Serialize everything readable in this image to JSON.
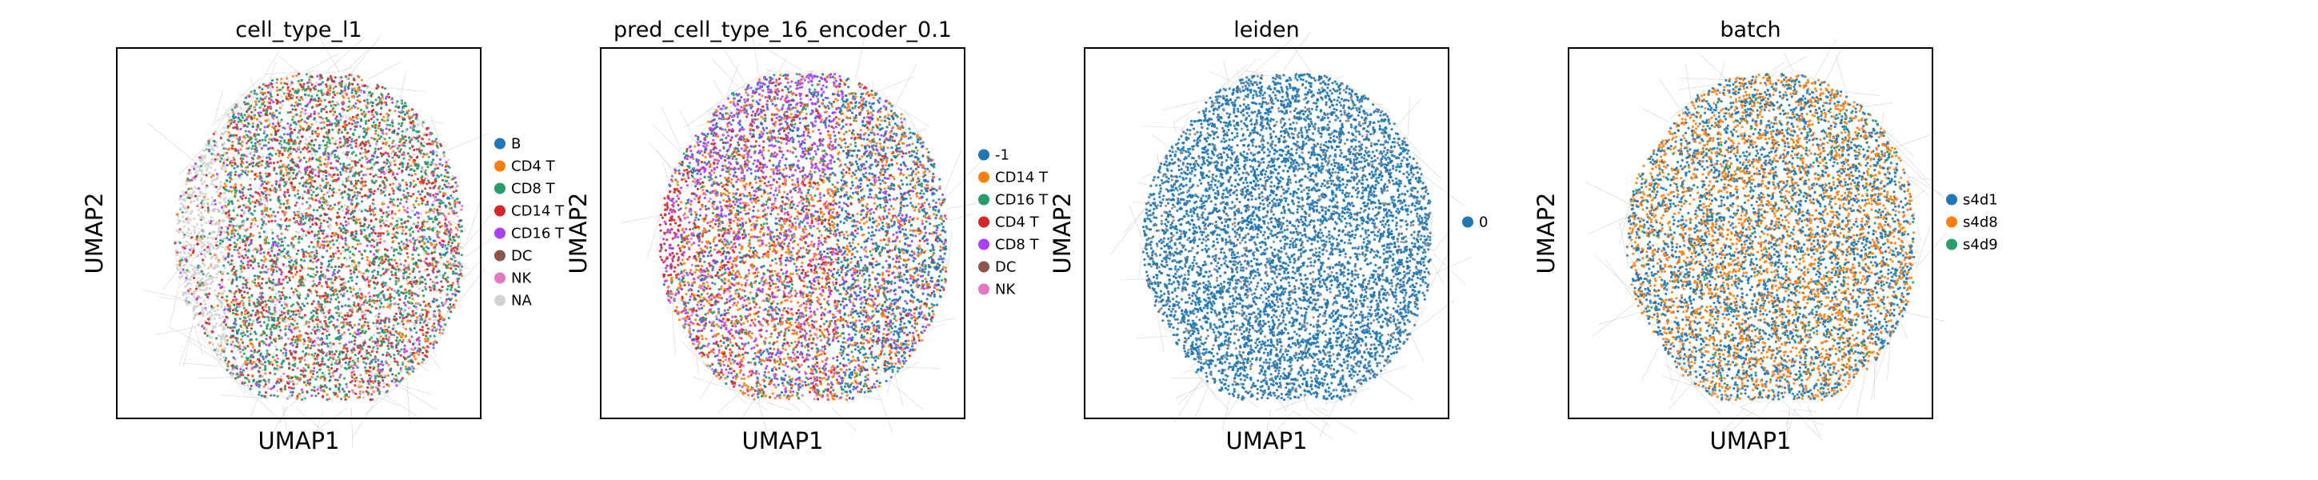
{
  "chart_data": [
    {
      "type": "scatter",
      "title": "cell_type_l1",
      "xlabel": "UMAP1",
      "ylabel": "UMAP2",
      "grid": false,
      "ticks": false,
      "legend_placement": "right",
      "legend": [
        {
          "label": "B",
          "color": "#1f77b4"
        },
        {
          "label": "CD4 T",
          "color": "#ff7f0e"
        },
        {
          "label": "CD8 T",
          "color": "#279e68"
        },
        {
          "label": "CD14 T",
          "color": "#d62728"
        },
        {
          "label": "CD16 T",
          "color": "#aa40fc"
        },
        {
          "label": "DC",
          "color": "#8c564b"
        },
        {
          "label": "NK",
          "color": "#e377c2"
        },
        {
          "label": "NA",
          "color": "#d3d3d3"
        }
      ]
    },
    {
      "type": "scatter",
      "title": "pred_cell_type_16_encoder_0.1",
      "xlabel": "UMAP1",
      "ylabel": "UMAP2",
      "grid": false,
      "ticks": false,
      "legend_placement": "right",
      "legend": [
        {
          "label": "-1",
          "color": "#1f77b4"
        },
        {
          "label": "CD14 T",
          "color": "#ff7f0e"
        },
        {
          "label": "CD16 T",
          "color": "#279e68"
        },
        {
          "label": "CD4 T",
          "color": "#d62728"
        },
        {
          "label": "CD8 T",
          "color": "#aa40fc"
        },
        {
          "label": "DC",
          "color": "#8c564b"
        },
        {
          "label": "NK",
          "color": "#e377c2"
        }
      ]
    },
    {
      "type": "scatter",
      "title": "leiden",
      "xlabel": "UMAP1",
      "ylabel": "UMAP2",
      "grid": false,
      "ticks": false,
      "legend_placement": "right",
      "legend": [
        {
          "label": "0",
          "color": "#1f77b4"
        }
      ]
    },
    {
      "type": "scatter",
      "title": "batch",
      "xlabel": "UMAP1",
      "ylabel": "UMAP2",
      "grid": false,
      "ticks": false,
      "legend_placement": "right",
      "legend": [
        {
          "label": "s4d1",
          "color": "#1f77b4"
        },
        {
          "label": "s4d8",
          "color": "#ff7f0e"
        },
        {
          "label": "s4d9",
          "color": "#279e68"
        }
      ]
    }
  ]
}
